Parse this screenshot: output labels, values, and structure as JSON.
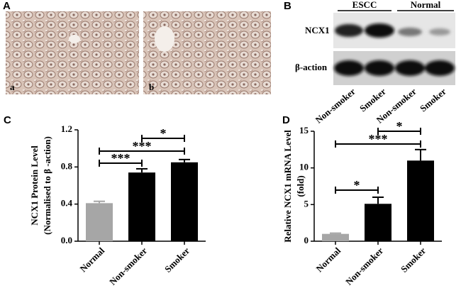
{
  "panels": {
    "A": {
      "label": "A",
      "images": [
        "a",
        "b"
      ]
    },
    "B": {
      "label": "B",
      "groups": [
        "ESCC",
        "Normal"
      ],
      "rows": [
        "NCX1",
        "β-action"
      ],
      "lanes": [
        "Non-smoker",
        "Smoker",
        "Non-smoker",
        "Smoker"
      ]
    }
  },
  "chart_data": [
    {
      "type": "bar",
      "panel": "C",
      "y_label": [
        "NCX1 Protein Level",
        "(Normalised to β -action)"
      ],
      "categories": [
        "Normal",
        "Non-smoker",
        "Smoker"
      ],
      "values": [
        0.41,
        0.74,
        0.85
      ],
      "errors": [
        0.02,
        0.04,
        0.03
      ],
      "colors": [
        "#a6a6a6",
        "#000000",
        "#000000"
      ],
      "ylim": [
        0,
        1.2
      ],
      "yticks": [
        {
          "value": 0,
          "label": "0.0"
        },
        0.4,
        0.8,
        1.2
      ],
      "annotations": [
        "***",
        "***",
        "*"
      ]
    },
    {
      "type": "bar",
      "panel": "D",
      "y_label": [
        "Relative NCX1 mRNA Level",
        "(fold)"
      ],
      "categories": [
        "Normal",
        "Non-smoker",
        "Smoker"
      ],
      "values": [
        1.0,
        5.1,
        11.0
      ],
      "errors": [
        0.1,
        0.9,
        1.5
      ],
      "colors": [
        "#a6a6a6",
        "#000000",
        "#000000"
      ],
      "ylim": [
        0,
        15
      ],
      "yticks": [
        0,
        5,
        10,
        15
      ],
      "annotations": [
        "*",
        "***",
        "*"
      ]
    }
  ]
}
